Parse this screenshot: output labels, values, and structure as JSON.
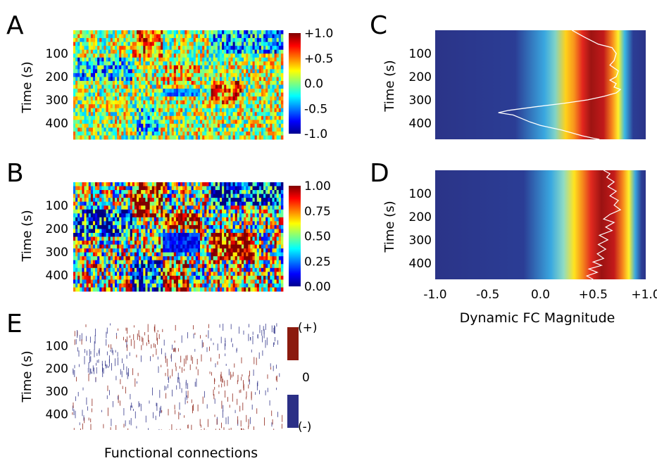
{
  "chart_data": [
    {
      "panel": "A",
      "type": "heatmap",
      "ylabel": "Time (s)",
      "yticks": [
        "100",
        "200",
        "300",
        "400"
      ],
      "ylim": [
        0,
        470
      ],
      "colorbar": {
        "ticks": [
          "+1.0",
          "+0.5",
          "0.0",
          "-0.5",
          "-1.0"
        ],
        "range": [
          -1.0,
          1.0
        ],
        "colormap": "jet"
      }
    },
    {
      "panel": "B",
      "type": "heatmap",
      "ylabel": "Time (s)",
      "yticks": [
        "100",
        "200",
        "300",
        "400"
      ],
      "ylim": [
        0,
        470
      ],
      "colorbar": {
        "ticks": [
          "1.00",
          "0.75",
          "0.50",
          "0.25",
          "0.00"
        ],
        "range": [
          0.0,
          1.0
        ],
        "colormap": "jet"
      }
    },
    {
      "panel": "C",
      "type": "line",
      "ylabel": "Time (s)",
      "yticks": [
        "100",
        "200",
        "300",
        "400"
      ],
      "xticks": [
        "-1.0",
        "-0.5",
        "0.0",
        "+0.5",
        "+1.0"
      ],
      "xlim": [
        -1.0,
        1.0
      ],
      "ylim": [
        0,
        470
      ],
      "background_band_center": 0.5,
      "series": [
        {
          "color": "#ffffff",
          "values": [
            [
              0.3,
              0
            ],
            [
              0.34,
              10
            ],
            [
              0.42,
              30
            ],
            [
              0.55,
              60
            ],
            [
              0.68,
              75
            ],
            [
              0.72,
              100
            ],
            [
              0.7,
              130
            ],
            [
              0.66,
              150
            ],
            [
              0.74,
              175
            ],
            [
              0.72,
              200
            ],
            [
              0.66,
              215
            ],
            [
              0.72,
              230
            ],
            [
              0.7,
              245
            ],
            [
              0.76,
              255
            ],
            [
              0.72,
              270
            ],
            [
              0.6,
              285
            ],
            [
              0.45,
              300
            ],
            [
              0.22,
              315
            ],
            [
              -0.05,
              330
            ],
            [
              -0.3,
              345
            ],
            [
              -0.4,
              355
            ],
            [
              -0.26,
              365
            ],
            [
              -0.18,
              380
            ],
            [
              -0.1,
              395
            ],
            [
              0.0,
              410
            ],
            [
              0.1,
              420
            ],
            [
              0.2,
              430
            ],
            [
              0.32,
              445
            ],
            [
              0.4,
              455
            ],
            [
              0.5,
              465
            ],
            [
              0.56,
              470
            ]
          ]
        }
      ]
    },
    {
      "panel": "D",
      "type": "line",
      "ylabel": "Time (s)",
      "yticks": [
        "100",
        "200",
        "300",
        "400"
      ],
      "xticks": [
        "-1.0",
        "-0.5",
        "0.0",
        "+0.5",
        "+1.0"
      ],
      "xlim": [
        -1.0,
        1.0
      ],
      "ylim": [
        0,
        470
      ],
      "xlabel": "Dynamic FC Magnitude",
      "background_band_center": 0.6,
      "series": [
        {
          "color": "#ffffff",
          "values": [
            [
              0.6,
              0
            ],
            [
              0.66,
              15
            ],
            [
              0.63,
              30
            ],
            [
              0.7,
              50
            ],
            [
              0.64,
              70
            ],
            [
              0.72,
              90
            ],
            [
              0.66,
              110
            ],
            [
              0.74,
              130
            ],
            [
              0.7,
              150
            ],
            [
              0.76,
              170
            ],
            [
              0.66,
              190
            ],
            [
              0.6,
              210
            ],
            [
              0.7,
              225
            ],
            [
              0.62,
              245
            ],
            [
              0.68,
              260
            ],
            [
              0.56,
              280
            ],
            [
              0.64,
              300
            ],
            [
              0.55,
              320
            ],
            [
              0.62,
              340
            ],
            [
              0.54,
              360
            ],
            [
              0.6,
              380
            ],
            [
              0.5,
              395
            ],
            [
              0.58,
              410
            ],
            [
              0.46,
              425
            ],
            [
              0.54,
              440
            ],
            [
              0.44,
              455
            ],
            [
              0.5,
              470
            ]
          ]
        }
      ]
    },
    {
      "panel": "E",
      "type": "heatmap",
      "ylabel": "Time (s)",
      "xlabel": "Functional connections",
      "yticks": [
        "100",
        "200",
        "300",
        "400"
      ],
      "ylim": [
        0,
        470
      ],
      "legend": {
        "pos": "(+)",
        "zero": "0",
        "neg": "(-)",
        "pos_color": "#8b1a0e",
        "neg_color": "#2b2f86"
      }
    }
  ],
  "panel_letters": [
    "A",
    "B",
    "C",
    "D",
    "E"
  ]
}
